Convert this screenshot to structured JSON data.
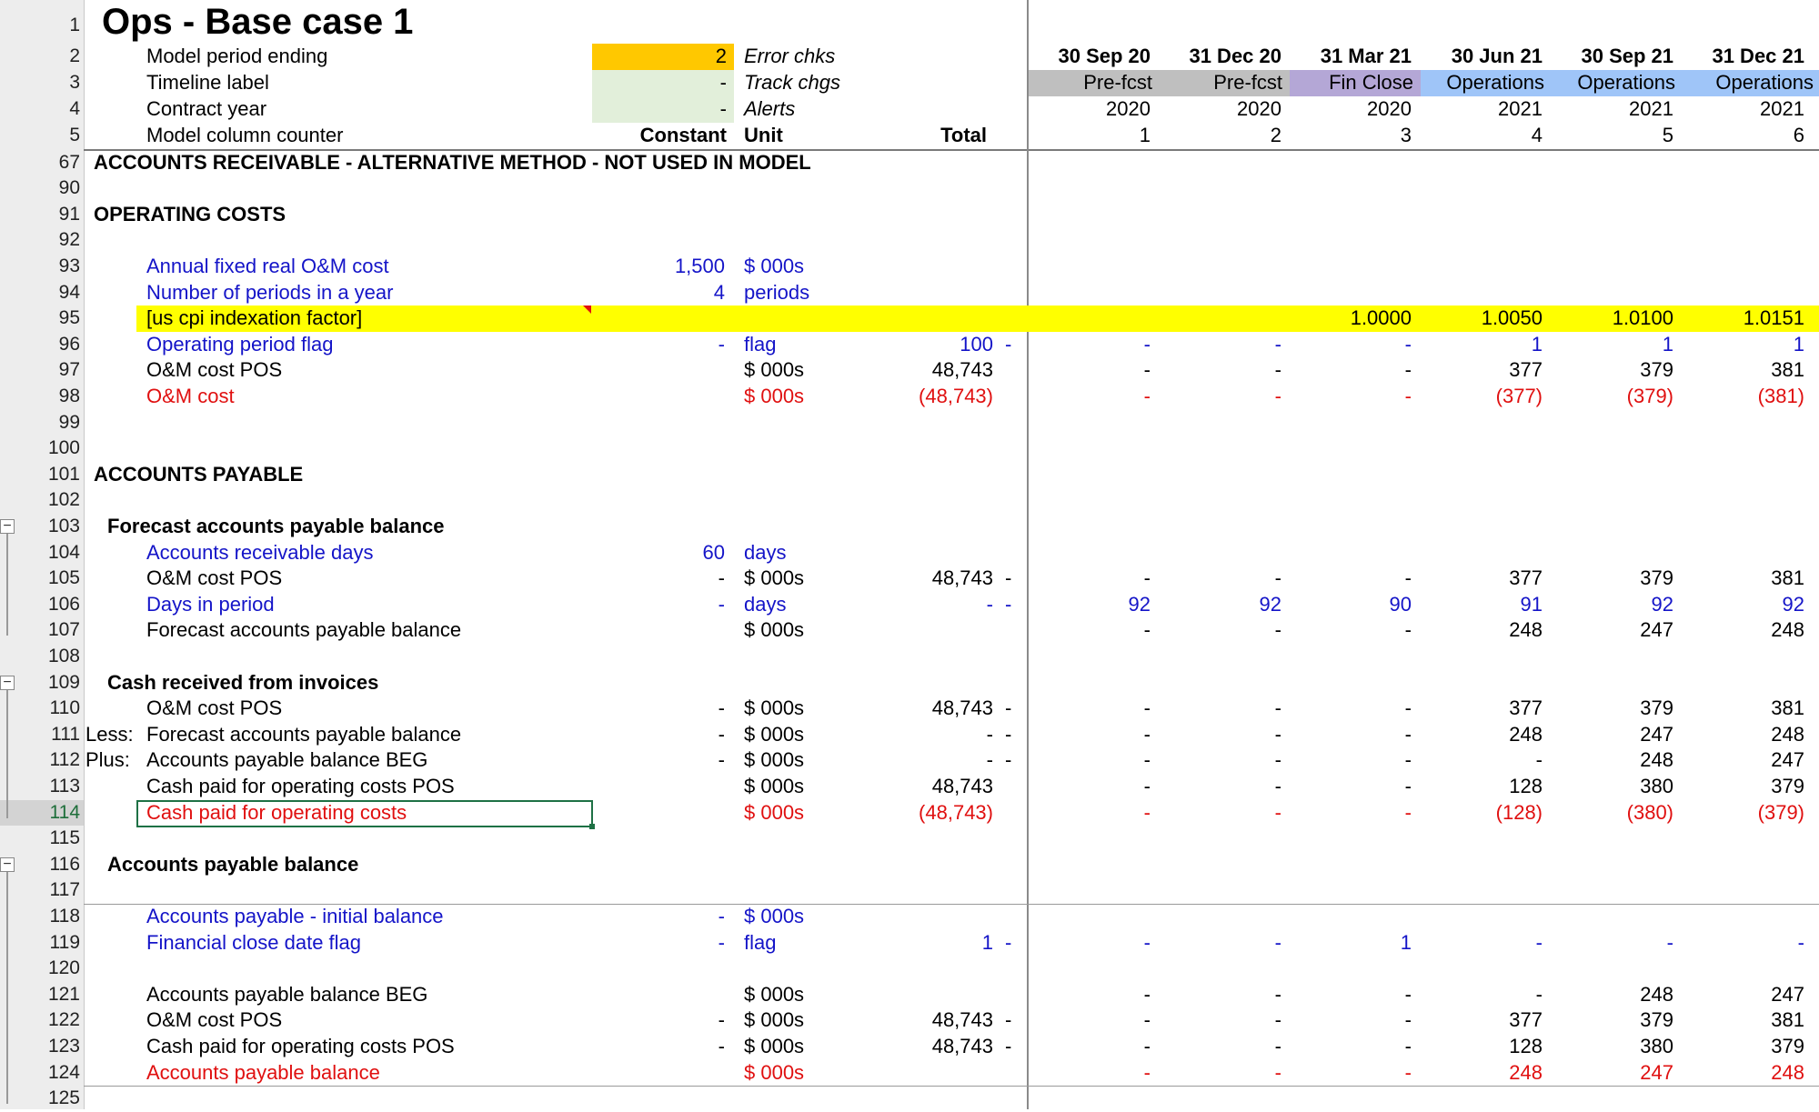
{
  "sheet": {
    "title": "Ops - Base case 1",
    "header": {
      "row2": {
        "rownum": "2",
        "label": "Model period ending",
        "value": "2",
        "right": "Error chks",
        "dates": [
          "30 Sep 20",
          "31 Dec 20",
          "31 Mar 21",
          "30 Jun 21",
          "30 Sep 21",
          "31 Dec 21"
        ]
      },
      "row3": {
        "rownum": "3",
        "label": "Timeline label",
        "value": "-",
        "right": "Track chgs",
        "phases": [
          "Pre-fcst",
          "Pre-fcst",
          "Fin Close",
          "Operations",
          "Operations",
          "Operations"
        ]
      },
      "row4": {
        "rownum": "4",
        "label": "Contract year",
        "value": "-",
        "right": "Alerts",
        "years": [
          "2020",
          "2020",
          "2020",
          "2021",
          "2021",
          "2021"
        ]
      },
      "row5": {
        "rownum": "5",
        "label": "Model column counter",
        "constant": "Constant",
        "unit": "Unit",
        "total": "Total",
        "counters": [
          "1",
          "2",
          "3",
          "4",
          "5",
          "6"
        ]
      }
    },
    "rows": [
      {
        "n": "67",
        "sec": "ACCOUNTS RECEIVABLE - ALTERNATIVE METHOD - NOT USED IN MODEL"
      },
      {
        "n": "90"
      },
      {
        "n": "91",
        "sec": "OPERATING COSTS"
      },
      {
        "n": "92"
      },
      {
        "n": "93",
        "label": "Annual fixed real O&M cost",
        "style": "blue",
        "const": "1,500",
        "unit": "$ 000s"
      },
      {
        "n": "94",
        "label": "Number of periods in a year",
        "style": "blue",
        "const": "4",
        "unit": "periods"
      },
      {
        "n": "95",
        "label": "[us cpi indexation factor]",
        "style": "yellow",
        "vals": [
          "",
          "",
          "1.0000",
          "1.0050",
          "1.0100",
          "1.0151"
        ]
      },
      {
        "n": "96",
        "label": "Operating period flag",
        "style": "blue",
        "const": "-",
        "unit": "flag",
        "total": "100",
        "chk": "-",
        "vals": [
          "-",
          "-",
          "-",
          "1",
          "1",
          "1"
        ]
      },
      {
        "n": "97",
        "label": "O&M cost POS",
        "unit": "$ 000s",
        "total": "48,743",
        "vals": [
          "-",
          "-",
          "-",
          "377",
          "379",
          "381"
        ]
      },
      {
        "n": "98",
        "label": "O&M cost",
        "style": "red",
        "unit": "$ 000s",
        "total": "(48,743)",
        "vals": [
          "-",
          "-",
          "-",
          "(377)",
          "(379)",
          "(381)"
        ]
      },
      {
        "n": "99"
      },
      {
        "n": "100"
      },
      {
        "n": "101",
        "sec": "ACCOUNTS PAYABLE"
      },
      {
        "n": "102"
      },
      {
        "n": "103",
        "sub": "Forecast accounts payable balance"
      },
      {
        "n": "104",
        "label": "Accounts receivable days",
        "style": "blue",
        "const": "60",
        "unit": "days"
      },
      {
        "n": "105",
        "label": "O&M cost POS",
        "const": "-",
        "unit": "$ 000s",
        "total": "48,743",
        "chk": "-",
        "vals": [
          "-",
          "-",
          "-",
          "377",
          "379",
          "381"
        ]
      },
      {
        "n": "106",
        "label": "Days in period",
        "style": "blue",
        "const": "-",
        "unit": "days",
        "total": "-",
        "chk": "-",
        "vals": [
          "92",
          "92",
          "90",
          "91",
          "92",
          "92"
        ]
      },
      {
        "n": "107",
        "label": "Forecast accounts payable balance",
        "unit": "$ 000s",
        "vals": [
          "-",
          "-",
          "-",
          "248",
          "247",
          "248"
        ]
      },
      {
        "n": "108"
      },
      {
        "n": "109",
        "sub": "Cash received from invoices"
      },
      {
        "n": "110",
        "label": "O&M cost POS",
        "const": "-",
        "unit": "$ 000s",
        "total": "48,743",
        "chk": "-",
        "vals": [
          "-",
          "-",
          "-",
          "377",
          "379",
          "381"
        ]
      },
      {
        "n": "111",
        "pre": "Less:",
        "label": "Forecast accounts payable balance",
        "const": "-",
        "unit": "$ 000s",
        "total": "-",
        "chk": "-",
        "vals": [
          "-",
          "-",
          "-",
          "248",
          "247",
          "248"
        ]
      },
      {
        "n": "112",
        "pre": "Plus:",
        "label": "Accounts payable balance BEG",
        "const": "-",
        "unit": "$ 000s",
        "total": "-",
        "chk": "-",
        "vals": [
          "-",
          "-",
          "-",
          "-",
          "248",
          "247"
        ]
      },
      {
        "n": "113",
        "label": "Cash paid for operating costs POS",
        "unit": "$ 000s",
        "total": "48,743",
        "vals": [
          "-",
          "-",
          "-",
          "128",
          "380",
          "379"
        ]
      },
      {
        "n": "114",
        "label": "Cash paid for operating costs",
        "style": "red",
        "unit": "$ 000s",
        "total": "(48,743)",
        "vals": [
          "-",
          "-",
          "-",
          "(128)",
          "(380)",
          "(379)"
        ]
      },
      {
        "n": "115"
      },
      {
        "n": "116",
        "sub": "Accounts payable balance"
      },
      {
        "n": "117"
      },
      {
        "n": "118",
        "label": "Accounts payable - initial balance",
        "style": "blue",
        "const": "-",
        "unit": "$ 000s"
      },
      {
        "n": "119",
        "label": "Financial close date flag",
        "style": "blue",
        "const": "-",
        "unit": "flag",
        "total": "1",
        "chk": "-",
        "vals": [
          "-",
          "-",
          "1",
          "-",
          "-",
          "-"
        ]
      },
      {
        "n": "120"
      },
      {
        "n": "121",
        "label": "Accounts payable balance BEG",
        "unit": "$ 000s",
        "vals": [
          "-",
          "-",
          "-",
          "-",
          "248",
          "247"
        ]
      },
      {
        "n": "122",
        "label": "O&M cost POS",
        "const": "-",
        "unit": "$ 000s",
        "total": "48,743",
        "chk": "-",
        "vals": [
          "-",
          "-",
          "-",
          "377",
          "379",
          "381"
        ]
      },
      {
        "n": "123",
        "label": "Cash paid for operating costs POS",
        "const": "-",
        "unit": "$ 000s",
        "total": "48,743",
        "chk": "-",
        "vals": [
          "-",
          "-",
          "-",
          "128",
          "380",
          "379"
        ]
      },
      {
        "n": "124",
        "label": "Accounts payable balance",
        "style": "red",
        "unit": "$ 000s",
        "vals": [
          "-",
          "-",
          "-",
          "248",
          "247",
          "248"
        ]
      },
      {
        "n": "125"
      }
    ]
  },
  "colors": {
    "accent_orange": "#ffc800",
    "input_blue": "#1414c8",
    "output_red": "#e01010",
    "highlight_yellow": "#ffff00",
    "selection_green": "#1e7145"
  },
  "icons": {
    "group_toggle": "minus-icon",
    "comment_marker": "comment-indicator-icon"
  }
}
